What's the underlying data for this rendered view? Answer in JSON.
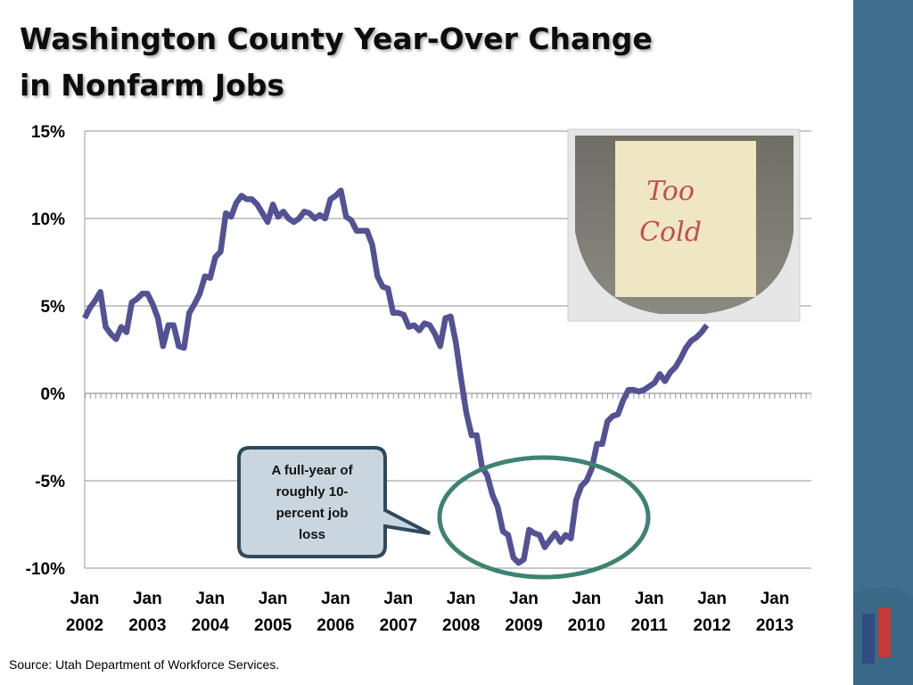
{
  "chart_data": {
    "type": "line",
    "title": [
      "Washington County Year-Over Change",
      "in Nonfarm Jobs"
    ],
    "source": "Source: Utah Department of Workforce Services.",
    "photo_note": "Too Cold",
    "callout": [
      "A full-year of",
      "roughly 10-",
      "percent job",
      "loss"
    ],
    "xlim": [
      "2002-01",
      "2013-08"
    ],
    "xticks": [
      {
        "value": "2002-01",
        "label": "Jan 2002"
      },
      {
        "value": "2003-01",
        "label": "Jan 2003"
      },
      {
        "value": "2004-01",
        "label": "Jan 2004"
      },
      {
        "value": "2005-01",
        "label": "Jan 2005"
      },
      {
        "value": "2006-01",
        "label": "Jan 2006"
      },
      {
        "value": "2007-01",
        "label": "Jan 2007"
      },
      {
        "value": "2008-01",
        "label": "Jan 2008"
      },
      {
        "value": "2009-01",
        "label": "Jan 2009"
      },
      {
        "value": "2010-01",
        "label": "Jan 2010"
      },
      {
        "value": "2011-01",
        "label": "Jan 2011"
      },
      {
        "value": "2012-01",
        "label": "Jan 2012"
      },
      {
        "value": "2013-01",
        "label": "Jan 2013"
      }
    ],
    "ylim": [
      -10,
      15
    ],
    "yticks": [
      {
        "value": -10,
        "label": "-10%"
      },
      {
        "value": -5,
        "label": "-5%"
      },
      {
        "value": 0,
        "label": "0%"
      },
      {
        "value": 5,
        "label": "5%"
      },
      {
        "value": 10,
        "label": "10%"
      },
      {
        "value": 15,
        "label": "15%"
      }
    ],
    "grid": true,
    "x": [
      "2002-01",
      "2002-02",
      "2002-03",
      "2002-04",
      "2002-05",
      "2002-06",
      "2002-07",
      "2002-08",
      "2002-09",
      "2002-10",
      "2002-11",
      "2002-12",
      "2003-01",
      "2003-02",
      "2003-03",
      "2003-04",
      "2003-05",
      "2003-06",
      "2003-07",
      "2003-08",
      "2003-09",
      "2003-10",
      "2003-11",
      "2003-12",
      "2004-01",
      "2004-02",
      "2004-03",
      "2004-04",
      "2004-05",
      "2004-06",
      "2004-07",
      "2004-08",
      "2004-09",
      "2004-10",
      "2004-11",
      "2004-12",
      "2005-01",
      "2005-02",
      "2005-03",
      "2005-04",
      "2005-05",
      "2005-06",
      "2005-07",
      "2005-08",
      "2005-09",
      "2005-10",
      "2005-11",
      "2005-12",
      "2006-01",
      "2006-02",
      "2006-03",
      "2006-04",
      "2006-05",
      "2006-06",
      "2006-07",
      "2006-08",
      "2006-09",
      "2006-10",
      "2006-11",
      "2006-12",
      "2007-01",
      "2007-02",
      "2007-03",
      "2007-04",
      "2007-05",
      "2007-06",
      "2007-07",
      "2007-08",
      "2007-09",
      "2007-10",
      "2007-11",
      "2007-12",
      "2008-01",
      "2008-02",
      "2008-03",
      "2008-04",
      "2008-05",
      "2008-06",
      "2008-07",
      "2008-08",
      "2008-09",
      "2008-10",
      "2008-11",
      "2008-12",
      "2009-01",
      "2009-02",
      "2009-03",
      "2009-04",
      "2009-05",
      "2009-06",
      "2009-07",
      "2009-08",
      "2009-09",
      "2009-10",
      "2009-11",
      "2009-12",
      "2010-01",
      "2010-02",
      "2010-03",
      "2010-04",
      "2010-05",
      "2010-06",
      "2010-07",
      "2010-08",
      "2010-09",
      "2010-10",
      "2010-11",
      "2010-12",
      "2011-01",
      "2011-02",
      "2011-03",
      "2011-04",
      "2011-05",
      "2011-06",
      "2011-07",
      "2011-08",
      "2011-09",
      "2011-10",
      "2011-11",
      "2011-12"
    ],
    "series": [
      {
        "name": "Year-over change",
        "color": "#525294",
        "values": [
          4.3,
          4.9,
          5.3,
          5.8,
          3.8,
          3.4,
          3.1,
          3.8,
          3.5,
          5.2,
          5.4,
          5.7,
          5.7,
          5.1,
          4.3,
          2.7,
          3.9,
          3.9,
          2.7,
          2.6,
          4.6,
          5.1,
          5.7,
          6.7,
          6.6,
          7.8,
          8.1,
          10.3,
          10.1,
          10.9,
          11.3,
          11.1,
          11.1,
          10.8,
          10.3,
          9.8,
          10.8,
          10.1,
          10.4,
          10.0,
          9.8,
          10.0,
          10.4,
          10.3,
          10.0,
          10.2,
          10.0,
          11.1,
          11.3,
          11.6,
          10.1,
          9.9,
          9.3,
          9.3,
          9.3,
          8.5,
          6.7,
          6.1,
          6.0,
          4.6,
          4.6,
          4.5,
          3.8,
          3.9,
          3.6,
          4.0,
          3.9,
          3.4,
          2.7,
          4.3,
          4.4,
          2.9,
          0.8,
          -1.1,
          -2.4,
          -2.4,
          -4.2,
          -4.7,
          -5.8,
          -6.5,
          -7.9,
          -8.1,
          -9.4,
          -9.7,
          -9.5,
          -7.8,
          -8.0,
          -8.1,
          -8.8,
          -8.4,
          -8.0,
          -8.5,
          -8.1,
          -8.3,
          -6.1,
          -5.3,
          -5.0,
          -4.3,
          -2.9,
          -2.9,
          -1.6,
          -1.3,
          -1.2,
          -0.4,
          0.2,
          0.2,
          0.1,
          0.2,
          0.4,
          0.6,
          1.1,
          0.7,
          1.2,
          1.5,
          2.0,
          2.6,
          3.0,
          3.2,
          3.5,
          3.9
        ]
      }
    ]
  }
}
